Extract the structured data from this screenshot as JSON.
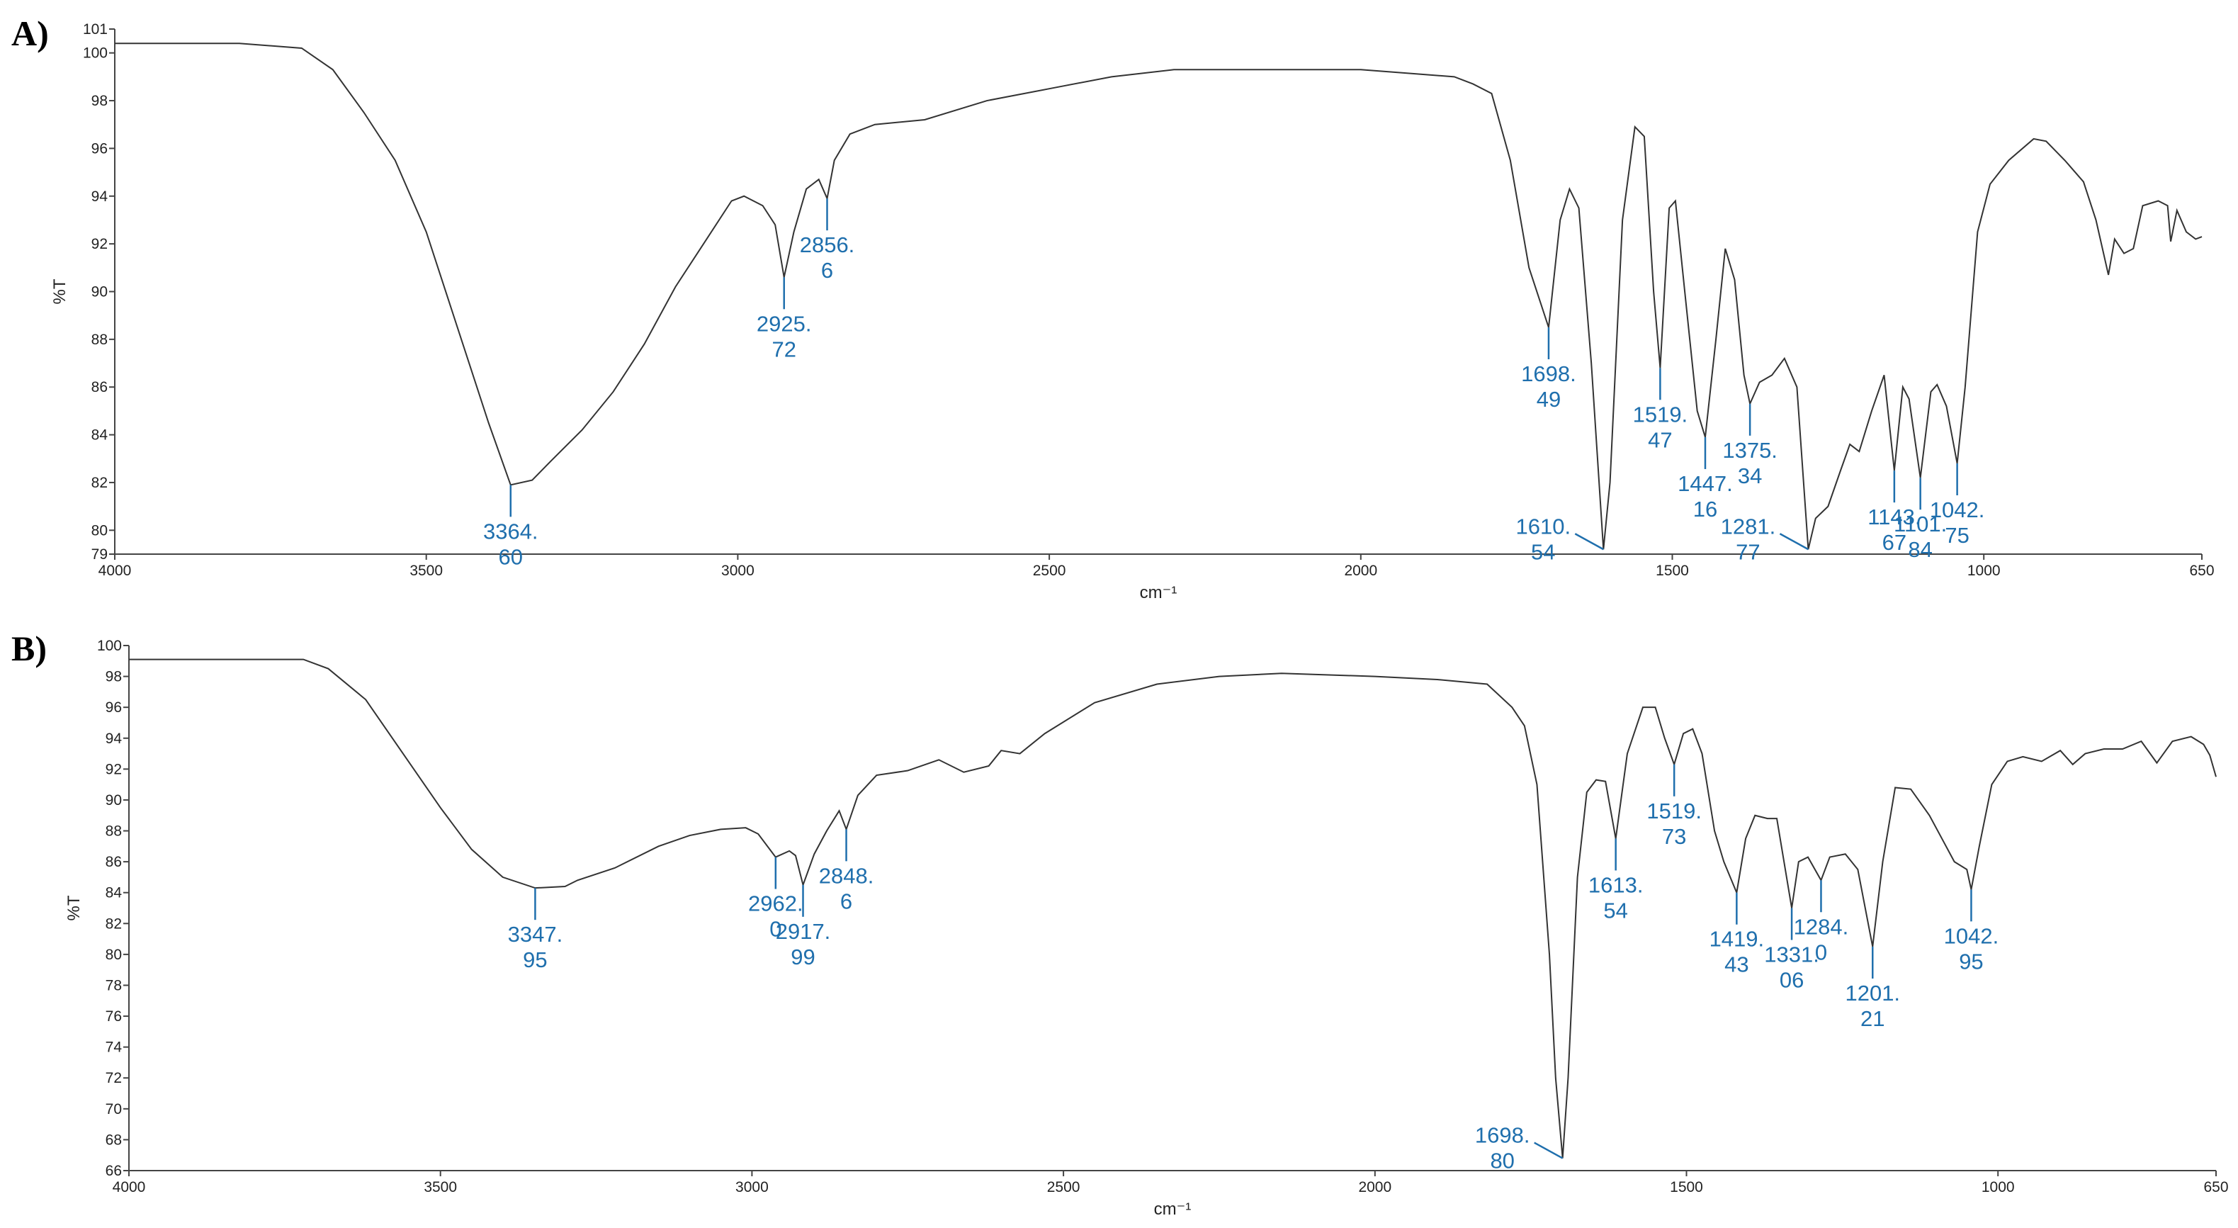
{
  "chart_data": [
    {
      "type": "line",
      "panel_label": "A)",
      "xlabel": "cm⁻¹",
      "ylabel": "%T",
      "color": "#333333",
      "annotation_color": "#1f6fad",
      "xlim": [
        4000,
        650
      ],
      "ylim": [
        79,
        101
      ],
      "xticks": [
        4000,
        3500,
        3000,
        2500,
        2000,
        1500,
        1000,
        650
      ],
      "yticks": [
        79,
        80,
        82,
        84,
        86,
        88,
        90,
        92,
        94,
        96,
        98,
        100,
        101
      ],
      "x": [
        4000,
        3800,
        3700,
        3650,
        3600,
        3550,
        3500,
        3450,
        3400,
        3364.6,
        3330,
        3300,
        3250,
        3200,
        3150,
        3100,
        3050,
        3010,
        2990,
        2960,
        2940,
        2925.72,
        2910,
        2890,
        2870,
        2856.6,
        2845,
        2820,
        2780,
        2700,
        2600,
        2500,
        2400,
        2300,
        2200,
        2100,
        2000,
        1900,
        1850,
        1820,
        1790,
        1760,
        1730,
        1698.49,
        1680,
        1665,
        1650,
        1630,
        1610.54,
        1600,
        1580,
        1560,
        1545,
        1530,
        1519.47,
        1505,
        1495,
        1480,
        1460,
        1447.16,
        1430,
        1415,
        1400,
        1385,
        1375.34,
        1360,
        1340,
        1320,
        1300,
        1281.77,
        1270,
        1250,
        1230,
        1215,
        1200,
        1180,
        1160,
        1143.67,
        1130,
        1120,
        1101.84,
        1085,
        1075,
        1060,
        1042.75,
        1030,
        1010,
        990,
        960,
        920,
        900,
        870,
        840,
        820,
        800,
        790,
        775,
        760,
        745,
        720,
        705,
        700,
        690,
        675,
        660,
        650
      ],
      "values": [
        100.4,
        100.4,
        100.2,
        99.3,
        97.5,
        95.5,
        92.5,
        88.5,
        84.5,
        81.9,
        82.1,
        82.9,
        84.2,
        85.8,
        87.8,
        90.2,
        92.2,
        93.8,
        94.0,
        93.6,
        92.8,
        90.6,
        92.5,
        94.3,
        94.7,
        93.9,
        95.5,
        96.6,
        97.0,
        97.2,
        98.0,
        98.5,
        99.0,
        99.3,
        99.3,
        99.3,
        99.3,
        99.1,
        99.0,
        98.7,
        98.3,
        95.5,
        91.0,
        88.5,
        93.0,
        94.3,
        93.5,
        87.0,
        79.2,
        82.0,
        93.0,
        96.9,
        96.5,
        90.0,
        86.8,
        93.5,
        93.8,
        90.0,
        85.0,
        83.9,
        88.0,
        91.8,
        90.5,
        86.5,
        85.3,
        86.2,
        86.5,
        87.2,
        86.0,
        79.2,
        80.5,
        81.0,
        82.5,
        83.6,
        83.3,
        85.0,
        86.5,
        82.5,
        86.0,
        85.5,
        82.2,
        85.8,
        86.1,
        85.2,
        82.8,
        86.0,
        92.5,
        94.5,
        95.5,
        96.4,
        96.3,
        95.5,
        94.6,
        93.0,
        90.7,
        92.2,
        91.6,
        91.8,
        93.6,
        93.8,
        93.6,
        92.1,
        93.4,
        92.5,
        92.2,
        92.3
      ],
      "annotations": [
        {
          "x": 3364.6,
          "label": [
            "3364.",
            "60"
          ]
        },
        {
          "x": 2925.72,
          "label": [
            "2925.",
            "72"
          ]
        },
        {
          "x": 2856.6,
          "label": [
            "2856.",
            "6"
          ]
        },
        {
          "x": 1698.49,
          "label": [
            "1698.",
            "49"
          ]
        },
        {
          "x": 1610.54,
          "label": [
            "1610.",
            "54"
          ]
        },
        {
          "x": 1519.47,
          "label": [
            "1519.",
            "47"
          ]
        },
        {
          "x": 1447.16,
          "label": [
            "1447.",
            "16"
          ]
        },
        {
          "x": 1375.34,
          "label": [
            "1375.",
            "34"
          ]
        },
        {
          "x": 1281.77,
          "label": [
            "1281.",
            "77"
          ]
        },
        {
          "x": 1143.67,
          "label": [
            "1143.",
            "67"
          ]
        },
        {
          "x": 1101.84,
          "label": [
            "1101.",
            "84"
          ]
        },
        {
          "x": 1042.75,
          "label": [
            "1042.",
            "75"
          ]
        }
      ]
    },
    {
      "type": "line",
      "panel_label": "B)",
      "xlabel": "cm⁻¹",
      "ylabel": "%T",
      "color": "#333333",
      "annotation_color": "#1f6fad",
      "xlim": [
        4000,
        650
      ],
      "ylim": [
        66,
        100
      ],
      "xticks": [
        4000,
        3500,
        3000,
        2500,
        2000,
        1500,
        1000,
        650
      ],
      "yticks": [
        66,
        68,
        70,
        72,
        74,
        76,
        78,
        80,
        82,
        84,
        86,
        88,
        90,
        92,
        94,
        96,
        98,
        100
      ],
      "x": [
        4000,
        3800,
        3720,
        3680,
        3620,
        3560,
        3500,
        3450,
        3400,
        3347.95,
        3300,
        3280,
        3220,
        3150,
        3100,
        3050,
        3010,
        2990,
        2962.0,
        2940,
        2930,
        2917.99,
        2900,
        2880,
        2860,
        2848.6,
        2830,
        2800,
        2750,
        2700,
        2660,
        2620,
        2600,
        2570,
        2530,
        2450,
        2350,
        2250,
        2150,
        2000,
        1900,
        1820,
        1780,
        1760,
        1740,
        1720,
        1710,
        1698.8,
        1690,
        1675,
        1660,
        1645,
        1630,
        1613.54,
        1595,
        1570,
        1550,
        1535,
        1519.73,
        1505,
        1490,
        1475,
        1455,
        1440,
        1419.43,
        1405,
        1390,
        1370,
        1355,
        1331.06,
        1320,
        1305,
        1284.0,
        1270,
        1245,
        1225,
        1201.21,
        1185,
        1165,
        1140,
        1110,
        1090,
        1070,
        1050,
        1042.95,
        1030,
        1010,
        985,
        960,
        930,
        900,
        880,
        860,
        830,
        800,
        770,
        745,
        720,
        690,
        670,
        660,
        650
      ],
      "values": [
        99.1,
        99.1,
        99.1,
        98.5,
        96.5,
        93.0,
        89.5,
        86.8,
        85.0,
        84.3,
        84.4,
        84.8,
        85.6,
        87.0,
        87.7,
        88.1,
        88.2,
        87.8,
        86.3,
        86.7,
        86.4,
        84.5,
        86.5,
        88.0,
        89.3,
        88.1,
        90.3,
        91.6,
        91.9,
        92.6,
        91.8,
        92.2,
        93.2,
        93.0,
        94.3,
        96.3,
        97.5,
        98.0,
        98.2,
        98.0,
        97.8,
        97.5,
        96.0,
        94.8,
        91.0,
        80.0,
        72.0,
        66.8,
        72.0,
        85.0,
        90.5,
        91.3,
        91.2,
        87.5,
        93.0,
        96.0,
        96.0,
        94.0,
        92.3,
        94.3,
        94.6,
        93.0,
        88.0,
        86.0,
        84.0,
        87.5,
        89.0,
        88.8,
        88.8,
        83.0,
        86.0,
        86.3,
        84.8,
        86.3,
        86.5,
        85.5,
        80.5,
        86.0,
        90.8,
        90.7,
        89.0,
        87.5,
        86.0,
        85.5,
        84.2,
        87.0,
        91.0,
        92.5,
        92.8,
        92.5,
        93.2,
        92.3,
        93.0,
        93.3,
        93.3,
        93.8,
        92.4,
        93.8,
        94.1,
        93.6,
        92.9,
        91.5
      ],
      "annotations": [
        {
          "x": 3347.95,
          "label": [
            "3347.",
            "95"
          ]
        },
        {
          "x": 2962.0,
          "label": [
            "2962.",
            "0"
          ]
        },
        {
          "x": 2917.99,
          "label": [
            "2917.",
            "99"
          ]
        },
        {
          "x": 2848.6,
          "label": [
            "2848.",
            "6"
          ]
        },
        {
          "x": 1698.8,
          "label": [
            "1698.",
            "80"
          ]
        },
        {
          "x": 1613.54,
          "label": [
            "1613.",
            "54"
          ]
        },
        {
          "x": 1519.73,
          "label": [
            "1519.",
            "73"
          ]
        },
        {
          "x": 1419.43,
          "label": [
            "1419.",
            "43"
          ]
        },
        {
          "x": 1331.06,
          "label": [
            "1331.",
            "06"
          ]
        },
        {
          "x": 1284.0,
          "label": [
            "1284.",
            "0"
          ]
        },
        {
          "x": 1201.21,
          "label": [
            "1201.",
            "21"
          ]
        },
        {
          "x": 1042.95,
          "label": [
            "1042.",
            "95"
          ]
        }
      ]
    }
  ]
}
